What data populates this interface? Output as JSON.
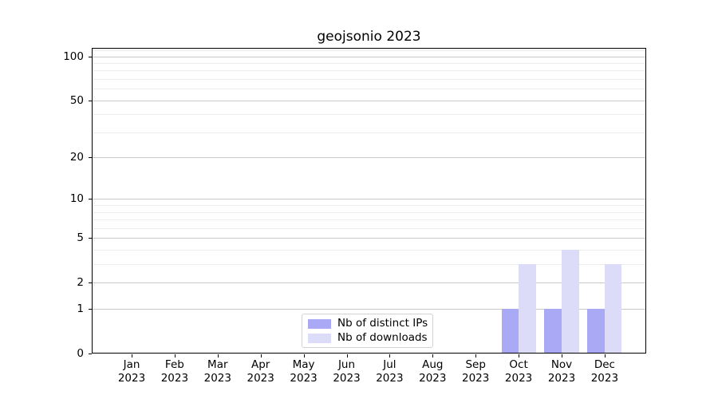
{
  "chart_data": {
    "type": "bar",
    "title": "geojsonio 2023",
    "categories": [
      "Jan",
      "Feb",
      "Mar",
      "Apr",
      "May",
      "Jun",
      "Jul",
      "Aug",
      "Sep",
      "Oct",
      "Nov",
      "Dec"
    ],
    "x_tick_second_line": "2023",
    "series": [
      {
        "name": "Nb of distinct IPs",
        "color": "#a9a9f6",
        "values": [
          0,
          0,
          0,
          0,
          0,
          0,
          0,
          0,
          0,
          1,
          1,
          1
        ]
      },
      {
        "name": "Nb of downloads",
        "color": "#dcdcf9",
        "values": [
          0,
          0,
          0,
          0,
          0,
          0,
          0,
          0,
          0,
          3,
          4,
          3
        ]
      }
    ],
    "yscale": "log1p",
    "ylim": [
      0,
      114
    ],
    "y_ticks": [
      0,
      1,
      2,
      5,
      10,
      20,
      50,
      100
    ],
    "y_minor_gridlines": [
      3,
      4,
      6,
      7,
      8,
      9,
      30,
      40,
      60,
      70,
      80,
      90,
      110
    ],
    "grid": true,
    "legend_position": "lower center (inside axes)",
    "bar_width_fraction": 0.4,
    "colors": {
      "major_grid": "#c9c9c9",
      "minor_grid": "#ececec",
      "spine": "#000000",
      "text": "#000000",
      "legend_border": "#d2d2d2"
    }
  }
}
